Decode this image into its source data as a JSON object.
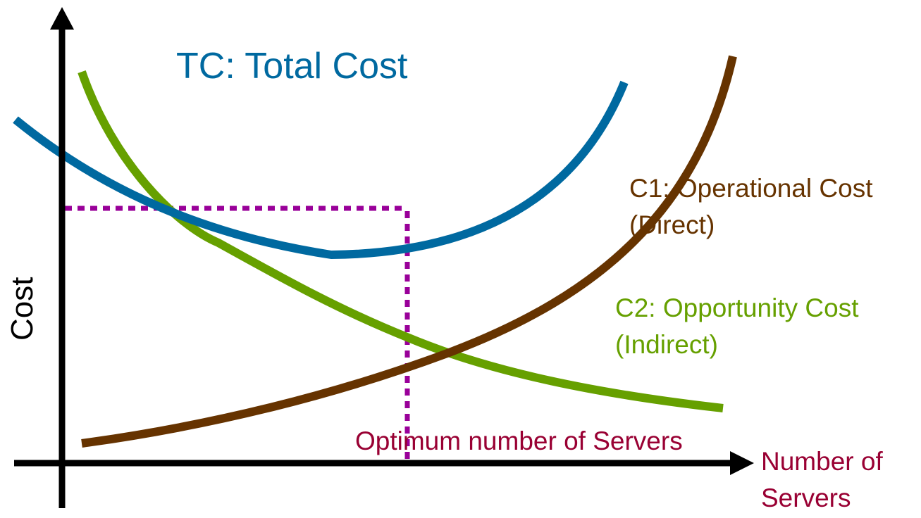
{
  "chart_data": {
    "type": "line",
    "title": "",
    "xlabel": "Number of Servers",
    "ylabel": "Cost",
    "axis_ticks": "none",
    "grid": false,
    "series": [
      {
        "name": "TC: Total Cost",
        "color": "#0069A0",
        "label_lines": [
          "TC: Total Cost"
        ]
      },
      {
        "name": "C1: Operational Cost (Direct)",
        "color": "#663300",
        "label_lines": [
          "C1: Operational Cost",
          "(Direct)"
        ]
      },
      {
        "name": "C2: Opportunity Cost (Indirect)",
        "color": "#66A000",
        "label_lines": [
          "C2: Opportunity Cost",
          "(Indirect)"
        ]
      }
    ],
    "annotations": [
      {
        "text": "Optimum number of Servers",
        "color": "#990033",
        "line_color": "#990099",
        "style": "dotted"
      }
    ],
    "xlabel_lines": [
      "Number of",
      "Servers"
    ],
    "xlabel_color": "#990033",
    "ylabel_color": "#000000"
  }
}
